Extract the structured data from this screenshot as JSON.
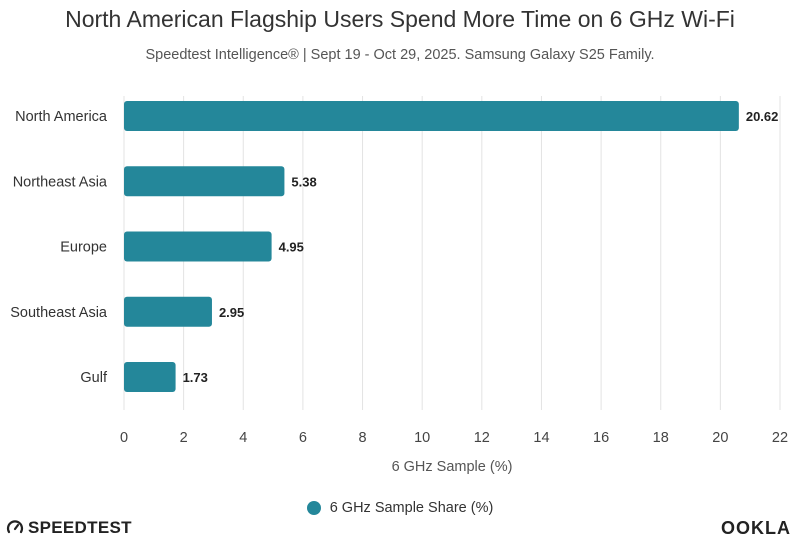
{
  "chart_data": {
    "type": "bar",
    "orientation": "horizontal",
    "title": "North American Flagship Users Spend More Time on 6 GHz Wi-Fi",
    "subtitle": "Speedtest Intelligence® | Sept 19 - Oct 29, 2025. Samsung Galaxy S25 Family.",
    "categories": [
      "North America",
      "Northeast Asia",
      "Europe",
      "Southeast Asia",
      "Gulf"
    ],
    "series": [
      {
        "name": "6 GHz Sample Share (%)",
        "values": [
          20.62,
          5.38,
          4.95,
          2.95,
          1.73
        ],
        "color": "#24879a"
      }
    ],
    "data_labels": [
      "20.62",
      "5.38",
      "4.95",
      "2.95",
      "1.73"
    ],
    "xlabel": "6 GHz Sample (%)",
    "ylabel": "",
    "xlim": [
      0,
      22
    ],
    "x_ticks": [
      0,
      2,
      4,
      6,
      8,
      10,
      12,
      14,
      16,
      18,
      20,
      22
    ],
    "grid": true,
    "legend_position": "bottom-center"
  },
  "branding": {
    "left": "SPEEDTEST",
    "right": "OOKLA"
  }
}
